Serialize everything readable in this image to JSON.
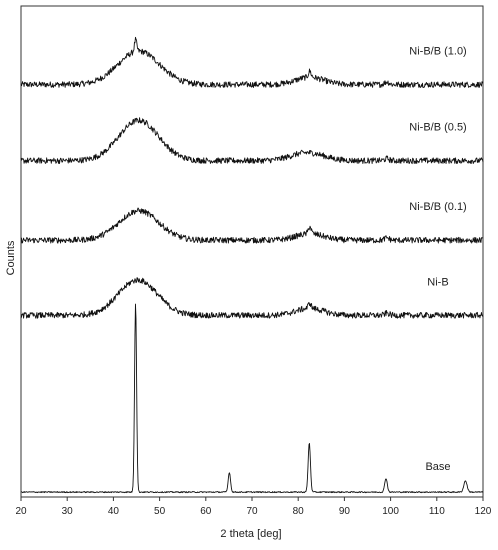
{
  "chart_data": {
    "type": "line",
    "xlabel": "2 theta [deg]",
    "ylabel": "Counts",
    "xlim": [
      20,
      120
    ],
    "xticks": [
      20,
      30,
      40,
      50,
      60,
      70,
      80,
      90,
      100,
      110,
      120
    ],
    "grid": false,
    "y_tick_labels_shown": false,
    "series": [
      {
        "name": "Ni-B/B (1.0)",
        "baseline": 0.84,
        "amplitude": 0.068,
        "noise": 0.006,
        "features": [
          {
            "center": 45.5,
            "width": 4.5,
            "height": 1.0
          },
          {
            "center": 44.8,
            "width": 0.25,
            "height": 0.35
          },
          {
            "center": 82.5,
            "width": 3.0,
            "height": 0.22
          },
          {
            "center": 82.5,
            "width": 0.3,
            "height": 0.18
          },
          {
            "center": 99.2,
            "width": 0.5,
            "height": 0.08
          }
        ]
      },
      {
        "name": "Ni-B/B (0.5)",
        "baseline": 0.685,
        "amplitude": 0.082,
        "noise": 0.006,
        "features": [
          {
            "center": 45.5,
            "width": 4.3,
            "height": 1.0
          },
          {
            "center": 82.0,
            "width": 3.5,
            "height": 0.2
          },
          {
            "center": 99.2,
            "width": 0.5,
            "height": 0.05
          }
        ]
      },
      {
        "name": "Ni-B/B (0.1)",
        "baseline": 0.523,
        "amplitude": 0.06,
        "noise": 0.006,
        "features": [
          {
            "center": 45.5,
            "width": 4.3,
            "height": 1.0
          },
          {
            "center": 82.5,
            "width": 3.0,
            "height": 0.22
          },
          {
            "center": 82.5,
            "width": 0.3,
            "height": 0.25
          },
          {
            "center": 99.2,
            "width": 0.5,
            "height": 0.08
          }
        ]
      },
      {
        "name": "Ni-B",
        "baseline": 0.37,
        "amplitude": 0.072,
        "noise": 0.006,
        "features": [
          {
            "center": 45.3,
            "width": 4.2,
            "height": 1.0
          },
          {
            "center": 82.5,
            "width": 3.0,
            "height": 0.2
          },
          {
            "center": 82.5,
            "width": 0.3,
            "height": 0.15
          },
          {
            "center": 99.2,
            "width": 0.5,
            "height": 0.06
          }
        ]
      },
      {
        "name": "Base",
        "baseline": 0.01,
        "amplitude": 0.385,
        "noise": 0.0012,
        "features": [
          {
            "center": 44.8,
            "width": 0.22,
            "height": 1.0
          },
          {
            "center": 65.1,
            "width": 0.25,
            "height": 0.105
          },
          {
            "center": 82.4,
            "width": 0.25,
            "height": 0.26
          },
          {
            "center": 99.0,
            "width": 0.28,
            "height": 0.073
          },
          {
            "center": 116.2,
            "width": 0.35,
            "height": 0.06
          }
        ]
      }
    ]
  }
}
